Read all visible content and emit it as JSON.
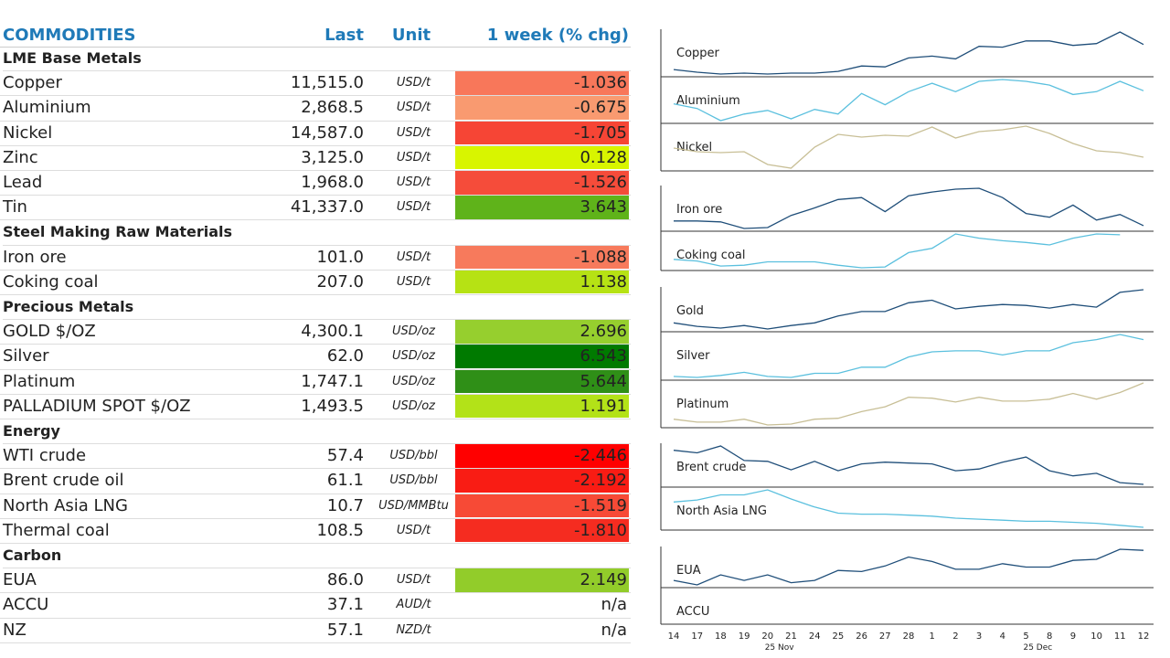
{
  "table": {
    "header": {
      "title": "COMMODITIES",
      "last": "Last",
      "unit": "Unit",
      "chg": "1 week (% chg)"
    },
    "sections": [
      {
        "name": "LME Base Metals",
        "rows": [
          {
            "name": "Copper",
            "last": "11,515.0",
            "unit": "USD/t",
            "chg": "-1.036",
            "color": "#f8775a"
          },
          {
            "name": "Aluminium",
            "last": "2,868.5",
            "unit": "USD/t",
            "chg": "-0.675",
            "color": "#f99a70"
          },
          {
            "name": "Nickel",
            "last": "14,587.0",
            "unit": "USD/t",
            "chg": "-1.705",
            "color": "#f64535"
          },
          {
            "name": "Zinc",
            "last": "3,125.0",
            "unit": "USD/t",
            "chg": "0.128",
            "color": "#d8f500"
          },
          {
            "name": "Lead",
            "last": "1,968.0",
            "unit": "USD/t",
            "chg": "-1.526",
            "color": "#f54c3a"
          },
          {
            "name": "Tin",
            "last": "41,337.0",
            "unit": "USD/t",
            "chg": "3.643",
            "color": "#5fb31a"
          }
        ]
      },
      {
        "name": "Steel Making Raw Materials",
        "rows": [
          {
            "name": "Iron ore",
            "last": "101.0",
            "unit": "USD/t",
            "chg": "-1.088",
            "color": "#f77a5c"
          },
          {
            "name": "Coking coal",
            "last": "207.0",
            "unit": "USD/t",
            "chg": "1.138",
            "color": "#b6e214"
          }
        ]
      },
      {
        "name": "Precious Metals",
        "rows": [
          {
            "name": "GOLD $/OZ",
            "last": "4,300.1",
            "unit": "USD/oz",
            "chg": "2.696",
            "color": "#96cf2e"
          },
          {
            "name": "Silver",
            "last": "62.0",
            "unit": "USD/oz",
            "chg": "6.543",
            "color": "#007a00"
          },
          {
            "name": "Platinum",
            "last": "1,747.1",
            "unit": "USD/oz",
            "chg": "5.644",
            "color": "#2f8f17"
          },
          {
            "name": "PALLADIUM SPOT $/OZ",
            "last": "1,493.5",
            "unit": "USD/oz",
            "chg": "1.191",
            "color": "#b3e218"
          }
        ]
      },
      {
        "name": "Energy",
        "rows": [
          {
            "name": "WTI crude",
            "last": "57.4",
            "unit": "USD/bbl",
            "chg": "-2.446",
            "color": "#ff0000"
          },
          {
            "name": "Brent crude oil",
            "last": "61.1",
            "unit": "USD/bbl",
            "chg": "-2.192",
            "color": "#f91c14"
          },
          {
            "name": "North Asia LNG",
            "last": "10.7",
            "unit": "USD/MMBtu",
            "chg": "-1.519",
            "color": "#f74a36"
          },
          {
            "name": "Thermal coal",
            "last": "108.5",
            "unit": "USD/t",
            "chg": "-1.810",
            "color": "#f52c20"
          }
        ]
      },
      {
        "name": "Carbon",
        "rows": [
          {
            "name": "EUA",
            "last": "86.0",
            "unit": "USD/t",
            "chg": "2.149",
            "color": "#92cc2a"
          },
          {
            "name": "ACCU",
            "last": "37.1",
            "unit": "AUD/t",
            "chg": "n/a"
          },
          {
            "name": "NZ",
            "last": "57.1",
            "unit": "NZD/t",
            "chg": "n/a"
          }
        ]
      }
    ]
  },
  "chart_data": {
    "type": "sparkline",
    "categories": [
      "14",
      "17",
      "18",
      "19",
      "20",
      "21",
      "24",
      "25",
      "26",
      "27",
      "28",
      "1",
      "2",
      "3",
      "4",
      "5",
      "8",
      "9",
      "10",
      "11",
      "12"
    ],
    "months": [
      "25 Nov",
      "25 Dec"
    ],
    "groups": [
      [
        {
          "name": "Copper",
          "color": "#1f4e79",
          "values": [
            7,
            4,
            2,
            3,
            2,
            3,
            3,
            5,
            11,
            10,
            20,
            22,
            19,
            33,
            32,
            39,
            39,
            34,
            36,
            49,
            35
          ]
        },
        {
          "name": "Aluminium",
          "color": "#5bc0de",
          "values": [
            20,
            15,
            2,
            9,
            13,
            4,
            14,
            9,
            31,
            19,
            33,
            42,
            33,
            44,
            46,
            44,
            40,
            30,
            33,
            44,
            34
          ]
        },
        {
          "name": "Nickel",
          "color": "#c8bf96",
          "values": [
            24,
            20,
            19,
            20,
            6,
            2,
            25,
            39,
            36,
            38,
            37,
            47,
            35,
            42,
            44,
            48,
            40,
            29,
            21,
            19,
            14
          ]
        }
      ],
      [
        {
          "name": "Iron ore",
          "color": "#1f4e79",
          "values": [
            13,
            13,
            12,
            5,
            6,
            19,
            27,
            36,
            38,
            23,
            40,
            44,
            47,
            48,
            38,
            21,
            17,
            30,
            14,
            20,
            8
          ]
        },
        {
          "name": "Coking coal",
          "color": "#5bc0de",
          "values": [
            10,
            8,
            2,
            3,
            7,
            7,
            7,
            3,
            0,
            1,
            18,
            23,
            40,
            35,
            32,
            30,
            27,
            35,
            40,
            39,
            null
          ]
        }
      ],
      [
        {
          "name": "Gold",
          "color": "#1f4e79",
          "values": [
            7,
            3,
            1,
            4,
            0,
            4,
            7,
            15,
            20,
            20,
            30,
            33,
            23,
            26,
            28,
            27,
            24,
            28,
            25,
            42,
            45
          ]
        },
        {
          "name": "Silver",
          "color": "#5bc0de",
          "values": [
            3,
            2,
            4,
            7,
            3,
            2,
            6,
            6,
            12,
            12,
            22,
            27,
            28,
            28,
            24,
            28,
            28,
            36,
            39,
            44,
            39
          ]
        },
        {
          "name": "Platinum",
          "color": "#c8bf96",
          "values": [
            10,
            7,
            7,
            10,
            4,
            5,
            10,
            11,
            18,
            23,
            33,
            32,
            28,
            33,
            29,
            29,
            31,
            37,
            31,
            38,
            48
          ]
        }
      ],
      [
        {
          "name": "Brent crude",
          "color": "#1f4e79",
          "values": [
            42,
            39,
            47,
            30,
            29,
            19,
            29,
            18,
            26,
            28,
            27,
            26,
            18,
            20,
            28,
            34,
            18,
            12,
            15,
            4,
            2
          ]
        },
        {
          "name": "North Asia LNG",
          "color": "#5bc0de",
          "values": [
            29,
            31,
            36,
            36,
            41,
            32,
            24,
            18,
            17,
            17,
            16,
            15,
            13,
            12,
            11,
            10,
            10,
            9,
            8,
            6,
            4
          ]
        }
      ],
      [
        {
          "name": "EUA",
          "color": "#1f4e79",
          "values": [
            4,
            0,
            9,
            4,
            9,
            2,
            4,
            13,
            12,
            17,
            25,
            21,
            14,
            14,
            19,
            16,
            16,
            22,
            23,
            32,
            31
          ]
        },
        {
          "name": "ACCU"
        }
      ]
    ]
  }
}
